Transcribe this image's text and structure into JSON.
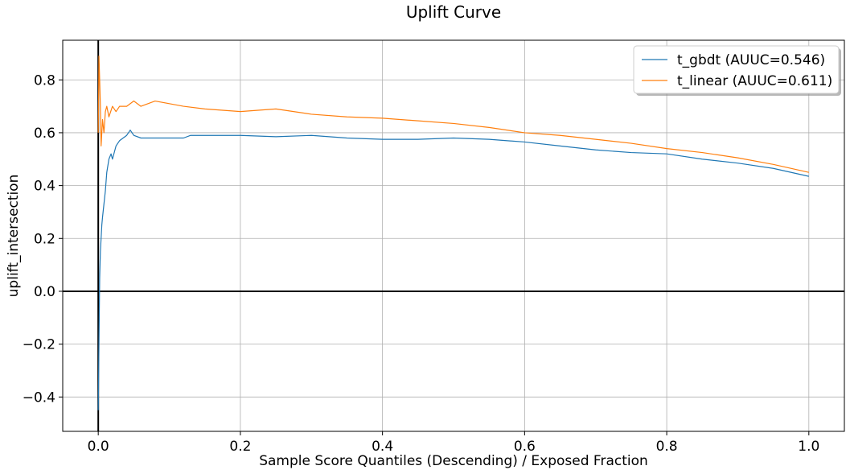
{
  "chart_data": {
    "type": "line",
    "title": "Uplift Curve",
    "xlabel": "Sample Score Quantiles (Descending) / Exposed Fraction",
    "ylabel": "uplift_intersection",
    "xlim": [
      -0.05,
      1.05
    ],
    "ylim": [
      -0.53,
      0.95
    ],
    "x_ticks": [
      0.0,
      0.2,
      0.4,
      0.6,
      0.8,
      1.0
    ],
    "x_tick_labels": [
      "0.0",
      "0.2",
      "0.4",
      "0.6",
      "0.8",
      "1.0"
    ],
    "y_ticks": [
      -0.4,
      -0.2,
      0.0,
      0.2,
      0.4,
      0.6,
      0.8
    ],
    "y_tick_labels": [
      "−0.4",
      "−0.2",
      "0.0",
      "0.2",
      "0.4",
      "0.6",
      "0.8"
    ],
    "grid": true,
    "legend_position": "top-right",
    "reference_lines": {
      "x": 0,
      "y": 0
    },
    "series": [
      {
        "name": "t_gbdt (AUUC=0.546)",
        "color": "#1f77b4",
        "x": [
          0.0,
          0.001,
          0.002,
          0.003,
          0.004,
          0.005,
          0.006,
          0.008,
          0.01,
          0.012,
          0.015,
          0.018,
          0.02,
          0.025,
          0.03,
          0.035,
          0.04,
          0.045,
          0.05,
          0.06,
          0.07,
          0.08,
          0.1,
          0.12,
          0.13,
          0.15,
          0.2,
          0.25,
          0.3,
          0.35,
          0.4,
          0.45,
          0.5,
          0.55,
          0.6,
          0.65,
          0.7,
          0.75,
          0.8,
          0.85,
          0.9,
          0.95,
          1.0
        ],
        "y": [
          -0.45,
          -0.2,
          0.05,
          0.15,
          0.2,
          0.25,
          0.28,
          0.33,
          0.38,
          0.45,
          0.5,
          0.52,
          0.5,
          0.55,
          0.57,
          0.58,
          0.59,
          0.61,
          0.59,
          0.58,
          0.58,
          0.58,
          0.58,
          0.58,
          0.59,
          0.59,
          0.59,
          0.585,
          0.59,
          0.58,
          0.575,
          0.575,
          0.58,
          0.575,
          0.565,
          0.55,
          0.535,
          0.525,
          0.52,
          0.5,
          0.485,
          0.465,
          0.435
        ]
      },
      {
        "name": "t_linear (AUUC=0.611)",
        "color": "#ff7f0e",
        "x": [
          0.0,
          0.001,
          0.002,
          0.003,
          0.004,
          0.005,
          0.006,
          0.008,
          0.01,
          0.012,
          0.015,
          0.02,
          0.025,
          0.03,
          0.04,
          0.05,
          0.06,
          0.07,
          0.08,
          0.1,
          0.12,
          0.15,
          0.2,
          0.25,
          0.3,
          0.35,
          0.4,
          0.45,
          0.5,
          0.55,
          0.6,
          0.65,
          0.7,
          0.75,
          0.8,
          0.85,
          0.9,
          0.95,
          1.0
        ],
        "y": [
          0.6,
          0.89,
          0.8,
          0.7,
          0.55,
          0.6,
          0.65,
          0.6,
          0.68,
          0.7,
          0.66,
          0.7,
          0.68,
          0.7,
          0.7,
          0.72,
          0.7,
          0.71,
          0.72,
          0.71,
          0.7,
          0.69,
          0.68,
          0.69,
          0.67,
          0.66,
          0.655,
          0.645,
          0.635,
          0.62,
          0.6,
          0.59,
          0.575,
          0.56,
          0.54,
          0.525,
          0.505,
          0.48,
          0.45
        ]
      }
    ]
  }
}
